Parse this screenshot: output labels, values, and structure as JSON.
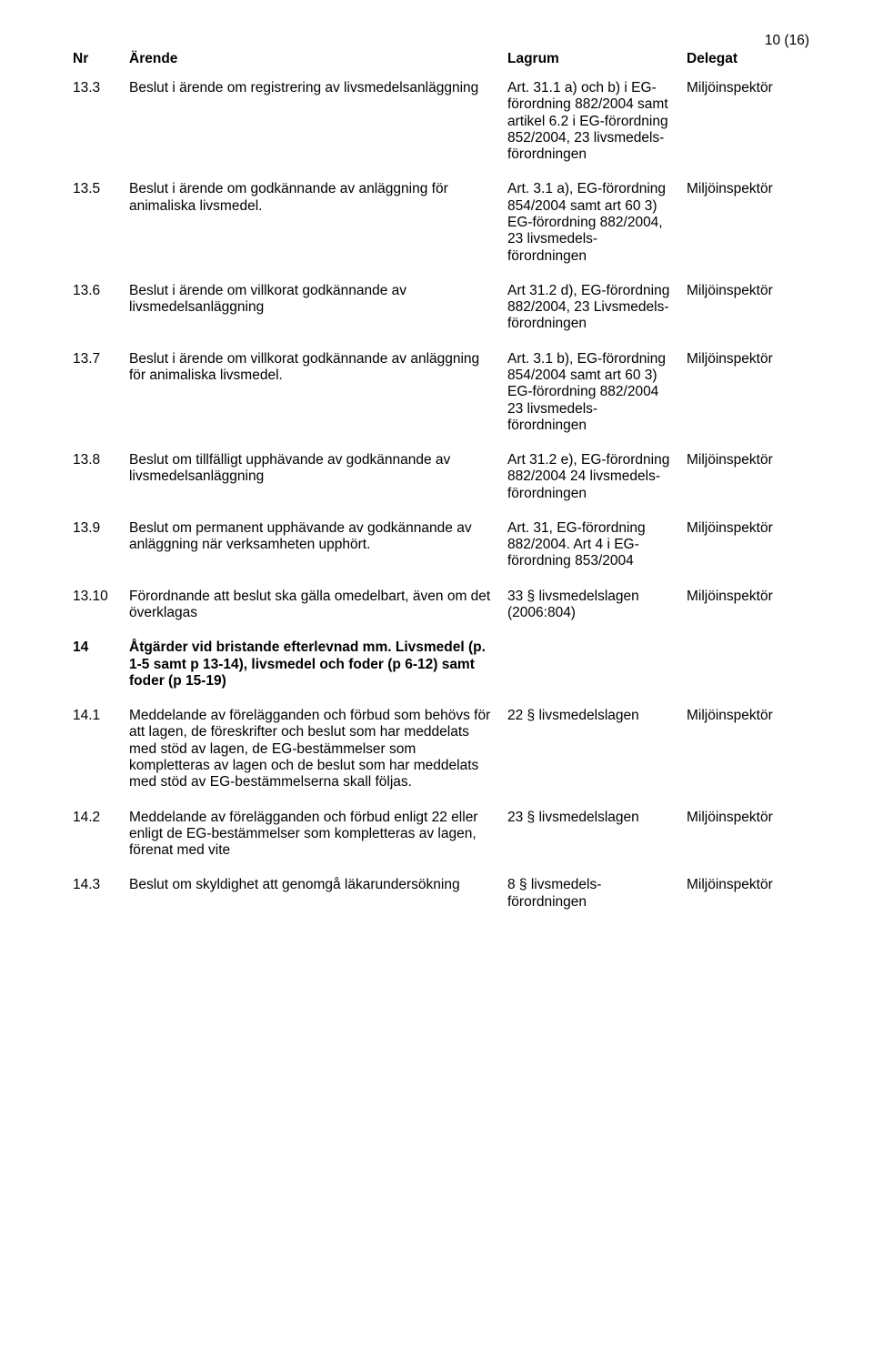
{
  "page_number": "10 (16)",
  "headers": {
    "nr": "Nr",
    "arende": "Ärende",
    "lagrum": "Lagrum",
    "delegat": "Delegat"
  },
  "rows": [
    {
      "nr": "13.3",
      "desc": "Beslut i ärende om registrering av livsmedelsanläggning",
      "law": "Art. 31.1 a) och b) i EG-förordning 882/2004 samt artikel 6.2 i EG-förordning 852/2004, 23 livsmedels-förordningen",
      "del": "Miljöinspektör"
    },
    {
      "nr": "13.5",
      "desc": "Beslut i ärende om godkännande av anläggning för animaliska livsmedel.",
      "law": "Art. 3.1 a), EG-förordning 854/2004 samt art 60 3) EG-förordning 882/2004, 23 livsmedels-förordningen",
      "del": "Miljöinspektör"
    },
    {
      "nr": "13.6",
      "desc": "Beslut i ärende om villkorat godkännande av livsmedelsanläggning",
      "law": "Art 31.2 d), EG-förordning 882/2004, 23 Livsmedels-förordningen",
      "del": "Miljöinspektör"
    },
    {
      "nr": "13.7",
      "desc": "Beslut i ärende om villkorat godkännande av anläggning för animaliska livsmedel.",
      "law": "Art. 3.1 b), EG-förordning 854/2004 samt art 60 3) EG-förordning 882/2004 23 livsmedels-förordningen",
      "del": "Miljöinspektör"
    },
    {
      "nr": "13.8",
      "desc": "Beslut om tillfälligt upphävande av godkännande av livsmedelsanläggning",
      "law": "Art 31.2 e), EG-förordning 882/2004 24 livsmedels-förordningen",
      "del": "Miljöinspektör"
    },
    {
      "nr": "13.9",
      "desc": "Beslut om permanent upphävande av godkännande av anläggning när verksamheten upphört.",
      "law": "Art. 31, EG-förordning 882/2004. Art 4 i EG-förordning 853/2004",
      "del": "Miljöinspektör"
    },
    {
      "nr": "13.10",
      "desc": "Förordnande att beslut ska gälla omedelbart, även om det överklagas",
      "law": "33 § livsmedelslagen (2006:804)",
      "del": "Miljöinspektör"
    }
  ],
  "section": {
    "nr": "14",
    "title": "Åtgärder vid bristande efterlevnad mm. Livsmedel (p. 1-5 samt p 13-14), livsmedel och foder (p 6-12) samt foder (p 15-19)"
  },
  "rows2": [
    {
      "nr": "14.1",
      "desc": "Meddelande av förelägganden och förbud som behövs för att lagen, de föreskrifter och beslut som har meddelats med stöd av lagen, de EG-bestämmelser som kompletteras av lagen och de beslut som har meddelats med stöd av EG-bestämmelserna skall följas.",
      "law": "22 § livsmedelslagen",
      "del": "Miljöinspektör"
    },
    {
      "nr": "14.2",
      "desc": "Meddelande av förelägganden och förbud enligt 22 eller enligt de EG-bestämmelser som kompletteras av lagen, förenat med vite",
      "law": "23 § livsmedelslagen",
      "del": "Miljöinspektör"
    },
    {
      "nr": "14.3",
      "desc": "Beslut om skyldighet att genomgå läkarundersökning",
      "law": "8 § livsmedels-förordningen",
      "del": "Miljöinspektör"
    }
  ]
}
